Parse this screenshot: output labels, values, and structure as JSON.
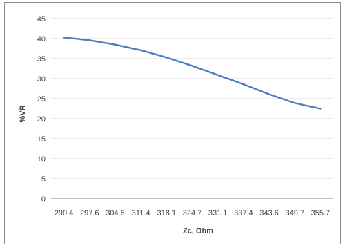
{
  "chart_data": {
    "type": "line",
    "title": "",
    "xlabel": "Zc, Ohm",
    "ylabel": "%VR",
    "categories": [
      "290.4",
      "297.6",
      "304.6",
      "311.4",
      "318.1",
      "324.7",
      "331.1",
      "337.4",
      "343.6",
      "349.7",
      "355.7"
    ],
    "series": [
      {
        "values": [
          40.3,
          39.6,
          38.5,
          37.1,
          35.3,
          33.2,
          30.9,
          28.6,
          26.1,
          23.9,
          22.5
        ]
      }
    ],
    "yticks": [
      "0",
      "5",
      "10",
      "15",
      "20",
      "25",
      "30",
      "35",
      "40",
      "45"
    ],
    "ylim": [
      0,
      45
    ],
    "grid": true,
    "legend": "none",
    "line_color": "#4a7ebb"
  }
}
